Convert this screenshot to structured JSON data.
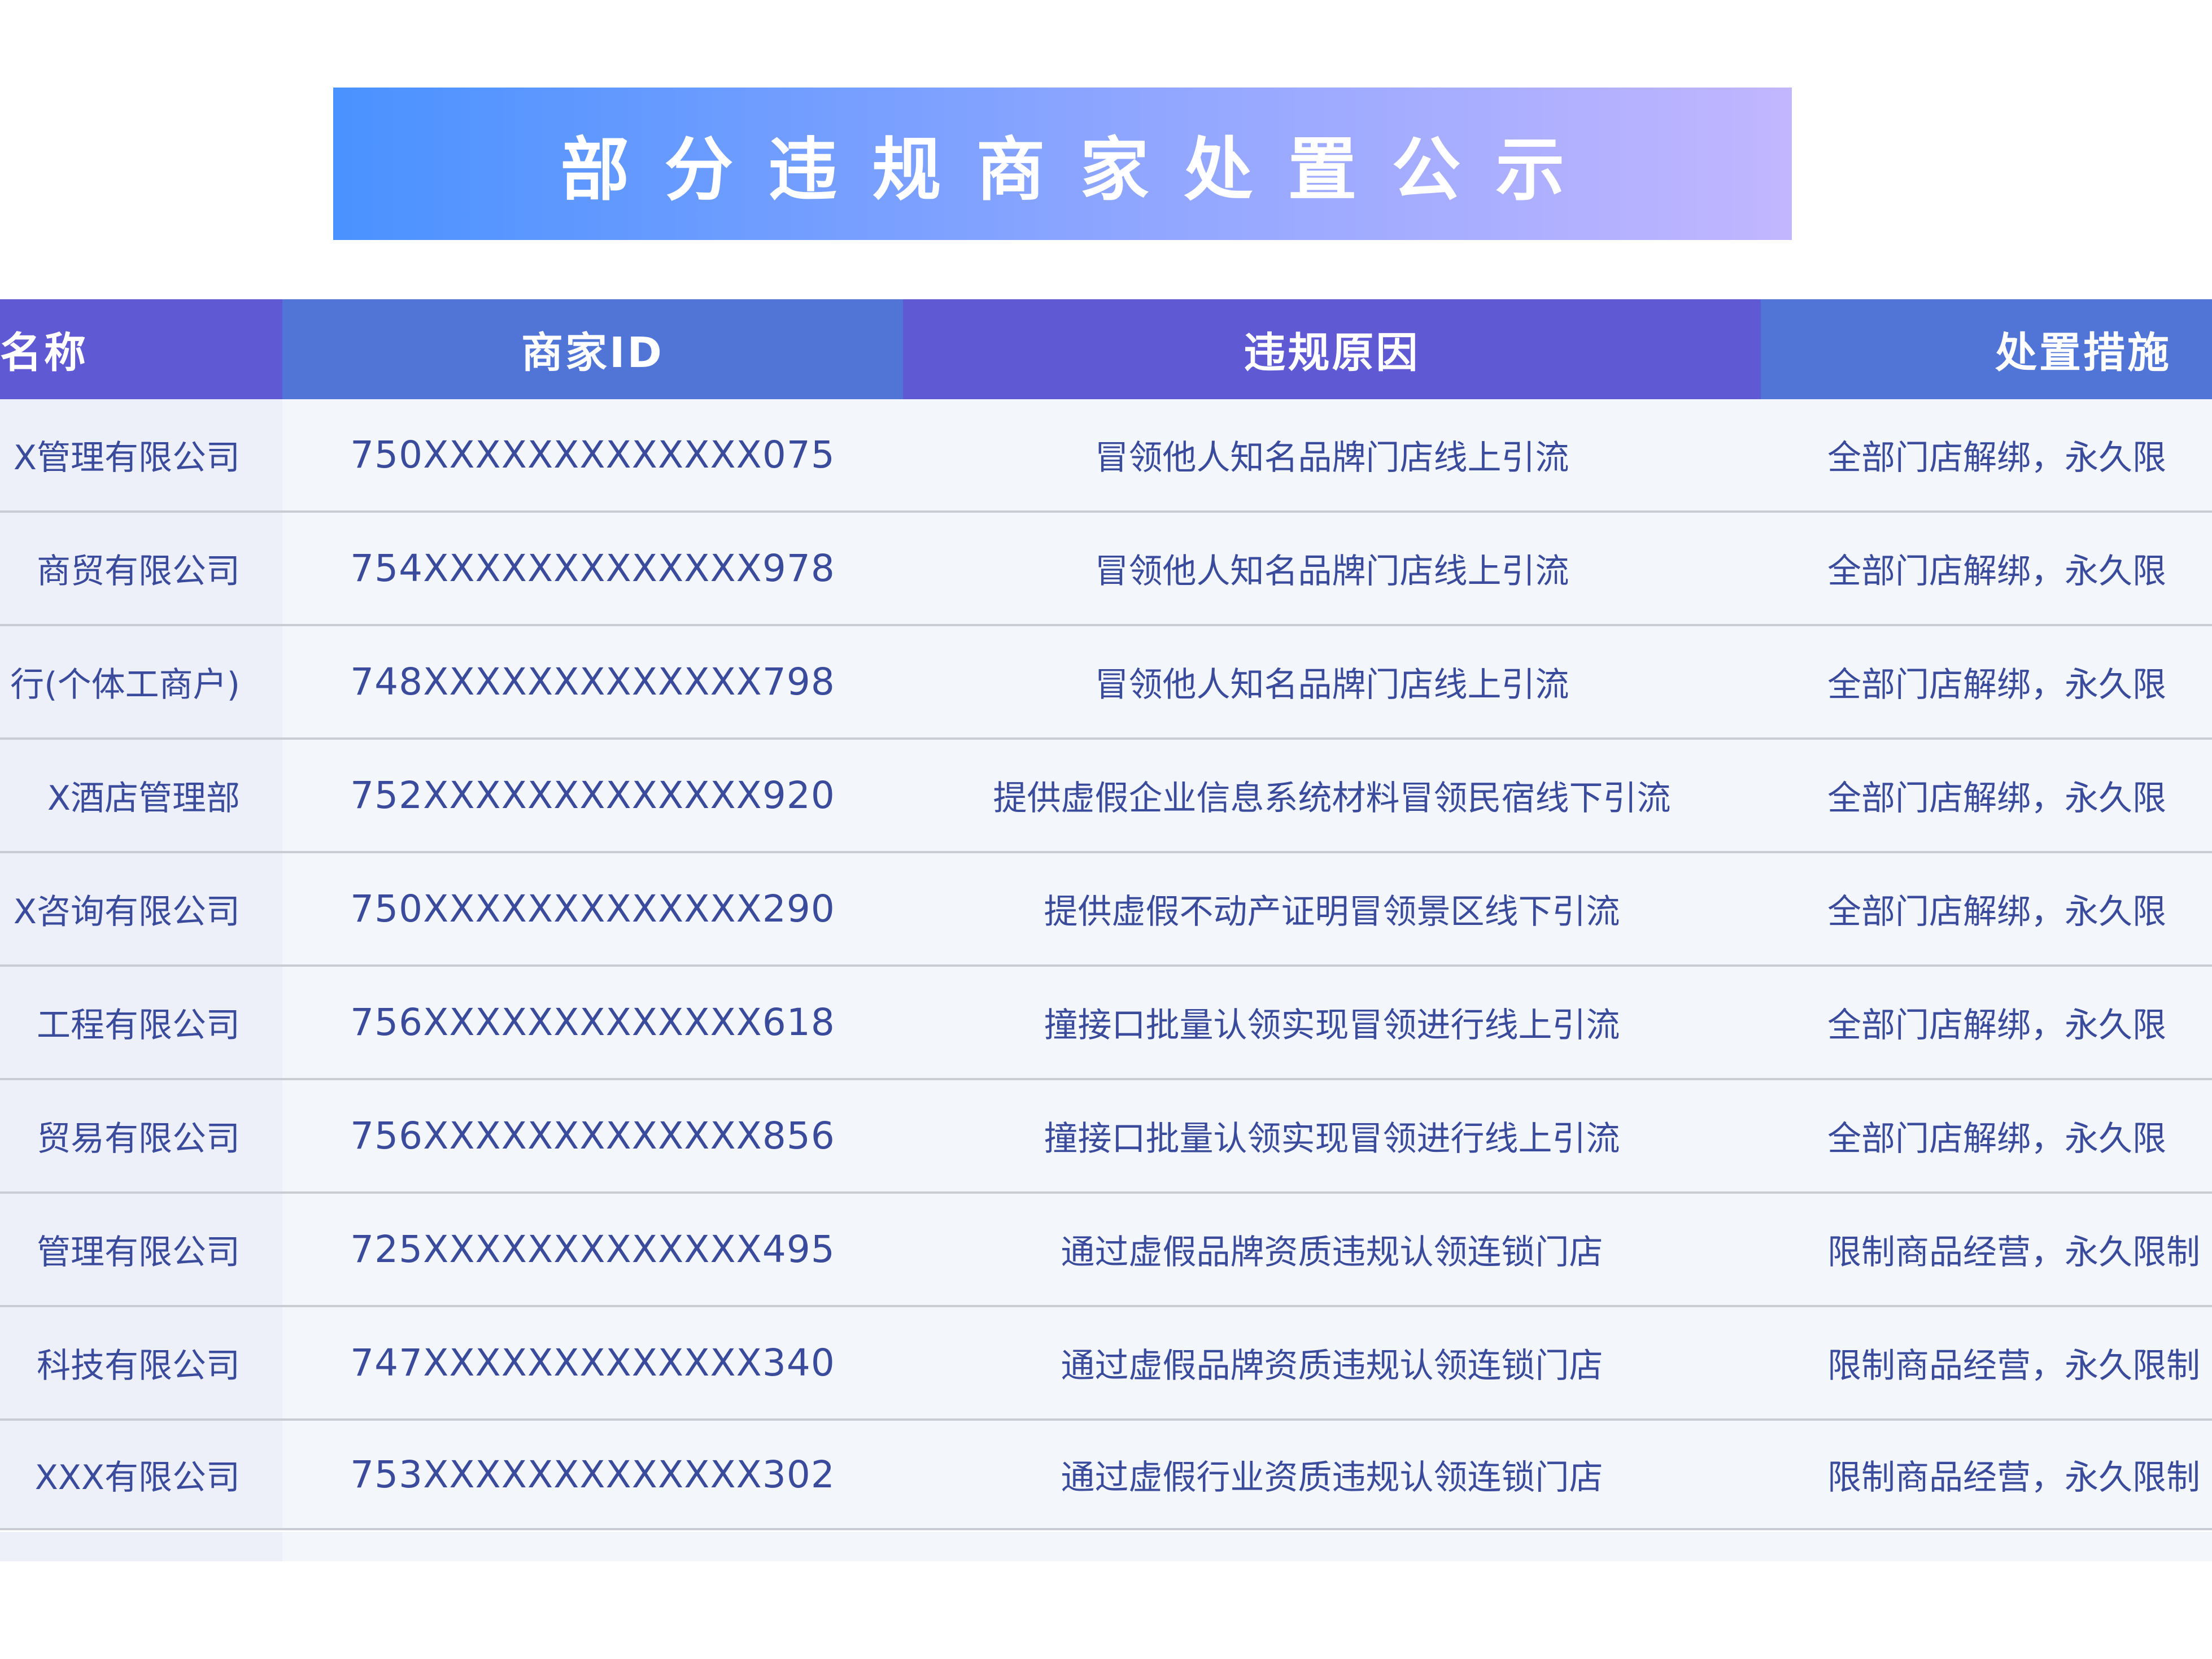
{
  "title": "部分违规商家处置公示",
  "colors": {
    "header_purple": "#6059d4",
    "header_blue": "#5075d6",
    "text": "#3b4b9c",
    "banner_start": "#4a92ff",
    "banner_end": "#c2b6ff"
  },
  "table": {
    "headers": [
      "名称",
      "商家ID",
      "违规原因",
      "处置措施"
    ],
    "rows": [
      {
        "name": "X管理有限公司",
        "id": "750XXXXXXXXXXXXX075",
        "reason": "冒领他人知名品牌门店线上引流",
        "action": "全部门店解绑，永久限"
      },
      {
        "name": "商贸有限公司",
        "id": "754XXXXXXXXXXXXX978",
        "reason": "冒领他人知名品牌门店线上引流",
        "action": "全部门店解绑，永久限"
      },
      {
        "name": "行(个体工商户)",
        "id": "748XXXXXXXXXXXXX798",
        "reason": "冒领他人知名品牌门店线上引流",
        "action": "全部门店解绑，永久限"
      },
      {
        "name": "X酒店管理部",
        "id": "752XXXXXXXXXXXXX920",
        "reason": "提供虚假企业信息系统材料冒领民宿线下引流",
        "action": "全部门店解绑，永久限"
      },
      {
        "name": "X咨询有限公司",
        "id": "750XXXXXXXXXXXXX290",
        "reason": "提供虚假不动产证明冒领景区线下引流",
        "action": "全部门店解绑，永久限"
      },
      {
        "name": "工程有限公司",
        "id": "756XXXXXXXXXXXXX618",
        "reason": "撞接口批量认领实现冒领进行线上引流",
        "action": "全部门店解绑，永久限"
      },
      {
        "name": "贸易有限公司",
        "id": "756XXXXXXXXXXXXX856",
        "reason": "撞接口批量认领实现冒领进行线上引流",
        "action": "全部门店解绑，永久限"
      },
      {
        "name": "管理有限公司",
        "id": "725XXXXXXXXXXXXX495",
        "reason": "通过虚假品牌资质违规认领连锁门店",
        "action": "限制商品经营，永久限制"
      },
      {
        "name": "科技有限公司",
        "id": "747XXXXXXXXXXXXX340",
        "reason": "通过虚假品牌资质违规认领连锁门店",
        "action": "限制商品经营，永久限制"
      },
      {
        "name": "XXX有限公司",
        "id": "753XXXXXXXXXXXXX302",
        "reason": "通过虚假行业资质违规认领连锁门店",
        "action": "限制商品经营，永久限制"
      }
    ]
  }
}
